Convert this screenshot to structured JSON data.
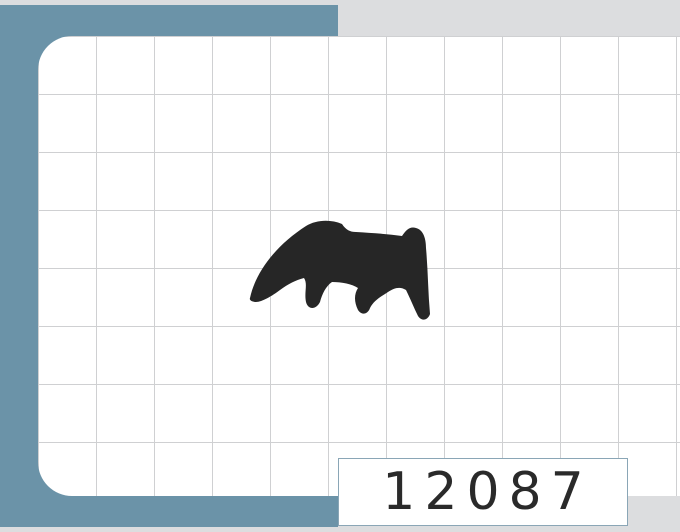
{
  "card": {
    "number": "12087"
  },
  "colors": {
    "backdrop": "#6b93a8",
    "grid_line": "#cfd0d2",
    "silhouette": "#262626",
    "page_background": "#dcdddf"
  },
  "silhouette": {
    "icon": "animal-silhouette-icon"
  }
}
